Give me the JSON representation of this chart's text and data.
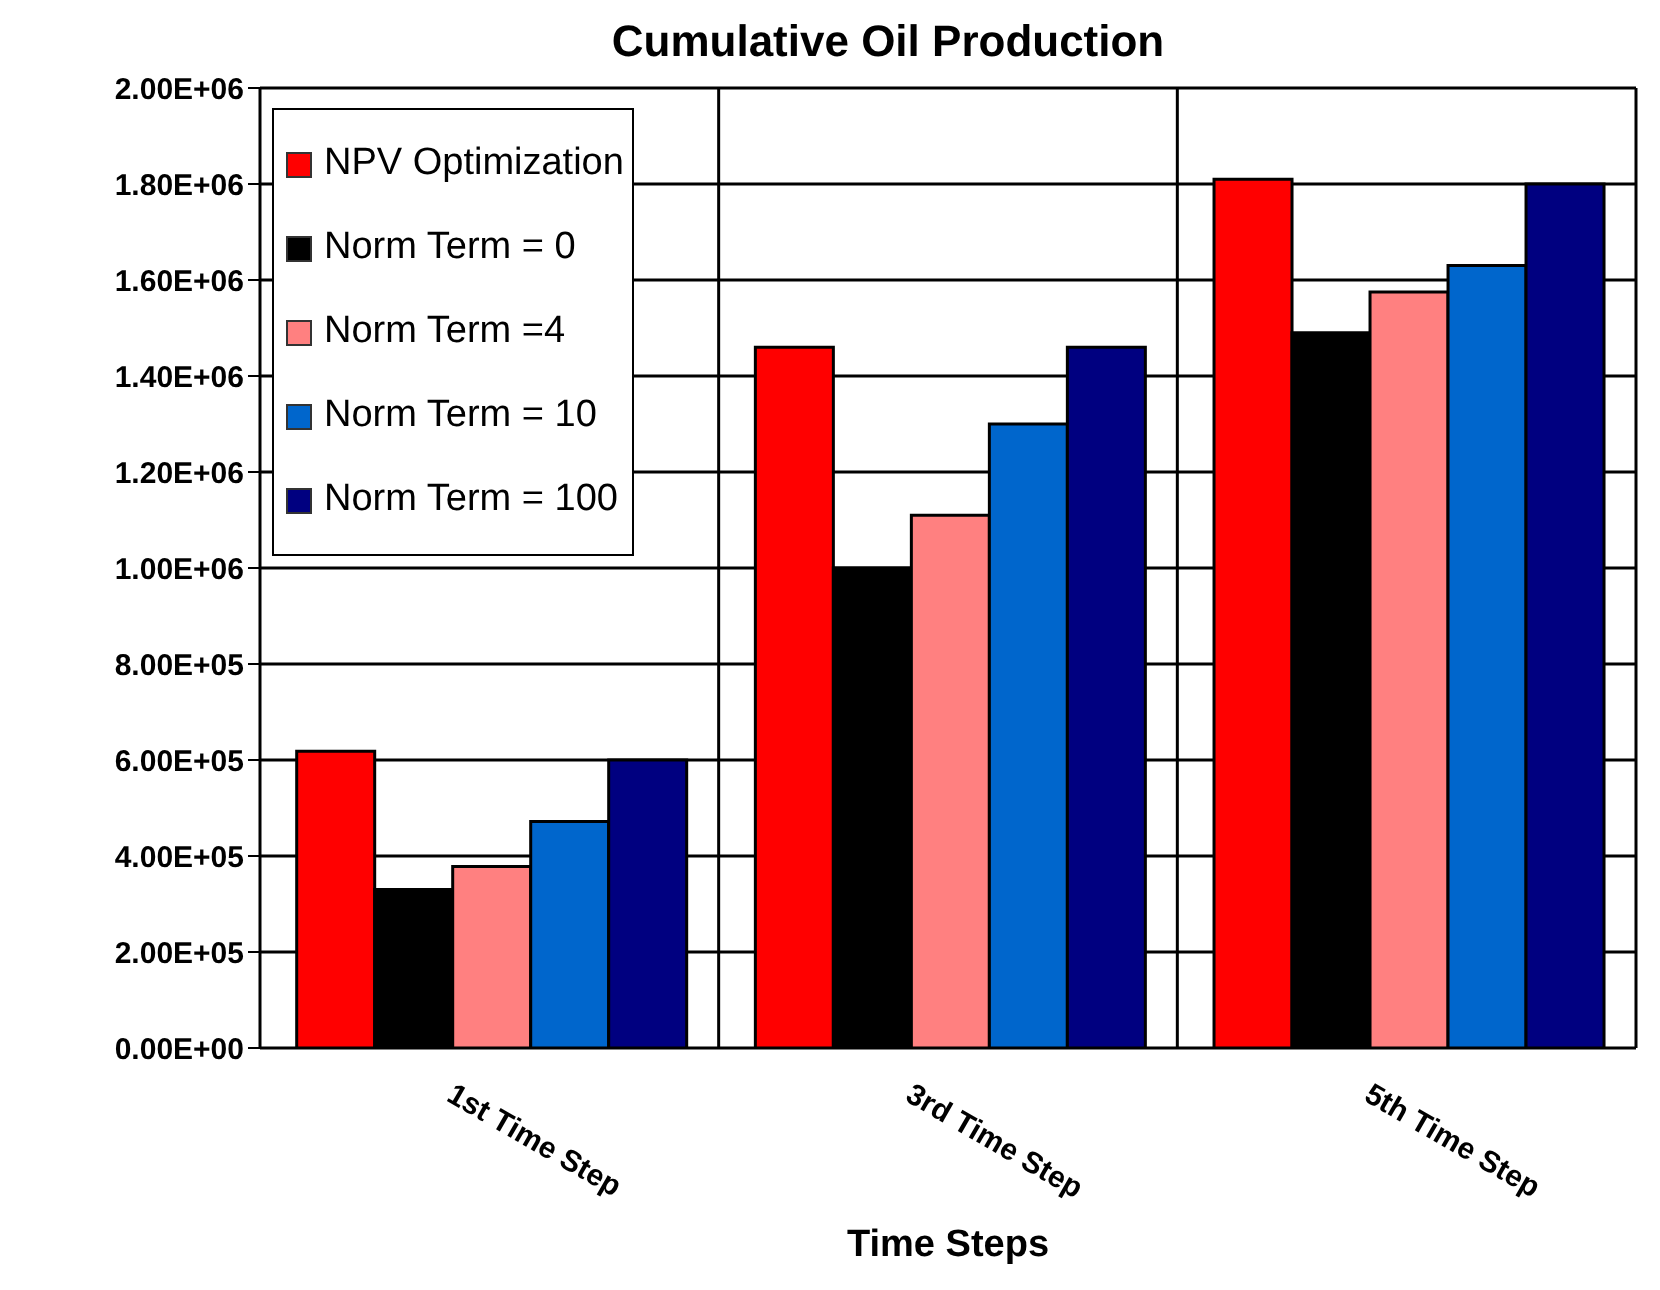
{
  "chart_data": {
    "type": "bar",
    "title": "Cumulative Oil Production",
    "xlabel": "Time Steps",
    "categories": [
      "1st Time Step",
      "3rd Time Step",
      "5th Time Step"
    ],
    "series": [
      {
        "name": "NPV Optimization",
        "color": "#ff0000",
        "values": [
          618000,
          1460000,
          1810000
        ]
      },
      {
        "name": "Norm Term = 0",
        "color": "#000000",
        "values": [
          330000,
          1000000,
          1490000
        ]
      },
      {
        "name": "Norm Term =4",
        "color": "#ff8080",
        "values": [
          378000,
          1110000,
          1575000
        ]
      },
      {
        "name": "Norm Term = 10",
        "color": "#0066cc",
        "values": [
          472000,
          1300000,
          1630000
        ]
      },
      {
        "name": "Norm Term = 100",
        "color": "#000080",
        "values": [
          600000,
          1460000,
          1800000
        ]
      }
    ],
    "ylim": [
      0,
      2000000
    ],
    "yticks": [
      {
        "value": 0,
        "label": "0.00E+00"
      },
      {
        "value": 200000,
        "label": "2.00E+05"
      },
      {
        "value": 400000,
        "label": "4.00E+05"
      },
      {
        "value": 600000,
        "label": "6.00E+05"
      },
      {
        "value": 800000,
        "label": "8.00E+05"
      },
      {
        "value": 1000000,
        "label": "1.00E+06"
      },
      {
        "value": 1200000,
        "label": "1.20E+06"
      },
      {
        "value": 1400000,
        "label": "1.40E+06"
      },
      {
        "value": 1600000,
        "label": "1.60E+06"
      },
      {
        "value": 1800000,
        "label": "1.80E+06"
      },
      {
        "value": 2000000,
        "label": "2.00E+06"
      }
    ],
    "grid": true,
    "legend": "top left"
  }
}
